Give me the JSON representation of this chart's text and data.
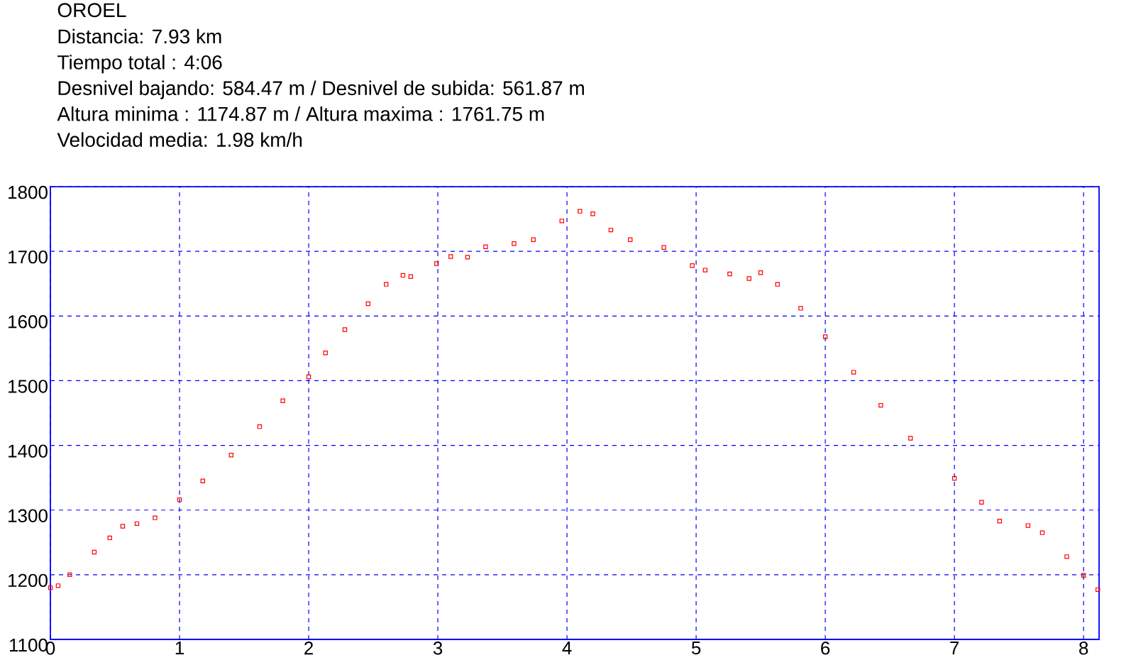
{
  "chart_data": {
    "type": "scatter",
    "title": "OROEL",
    "annotations": [
      "Distancia: 7.93 km",
      "Tiempo total : 4:06",
      "Desnivel bajando: 584.47 m / Desnivel de subida: 561.87 m",
      "Altura minima : 1174.87 m / Altura maxima : 1761.75 m",
      "Velocidad media: 1.98 km/h"
    ],
    "x": [
      0,
      0.06,
      0.15,
      0.34,
      0.46,
      0.56,
      0.67,
      0.81,
      1.0,
      1.18,
      1.4,
      1.62,
      1.8,
      2.0,
      2.13,
      2.28,
      2.46,
      2.6,
      2.73,
      2.79,
      2.99,
      3.1,
      3.23,
      3.37,
      3.59,
      3.74,
      3.96,
      4.1,
      4.2,
      4.34,
      4.49,
      4.75,
      4.97,
      5.07,
      5.26,
      5.41,
      5.5,
      5.63,
      5.81,
      6.0,
      6.22,
      6.43,
      6.66,
      7.0,
      7.21,
      7.35,
      7.57,
      7.68,
      7.87,
      8.0,
      8.11
    ],
    "values": [
      1180,
      1183,
      1200,
      1235,
      1257,
      1275,
      1279,
      1288,
      1316,
      1345,
      1385,
      1429,
      1469,
      1506,
      1543,
      1579,
      1619,
      1649,
      1663,
      1661,
      1681,
      1692,
      1691,
      1707,
      1712,
      1718,
      1747,
      1762,
      1758,
      1733,
      1718,
      1706,
      1678,
      1671,
      1665,
      1658,
      1667,
      1649,
      1612,
      1568,
      1513,
      1462,
      1411,
      1349,
      1312,
      1283,
      1276,
      1265,
      1228,
      1199,
      1177
    ],
    "color": "#ff0000",
    "marker": "square",
    "grid": true,
    "xlim": [
      0,
      8.12
    ],
    "xticks": [
      0,
      1,
      2,
      3,
      4,
      5,
      6,
      7,
      8
    ],
    "ylim": [
      1100,
      1800
    ],
    "yticks": [
      1100,
      1200,
      1300,
      1400,
      1500,
      1600,
      1700,
      1800
    ]
  }
}
